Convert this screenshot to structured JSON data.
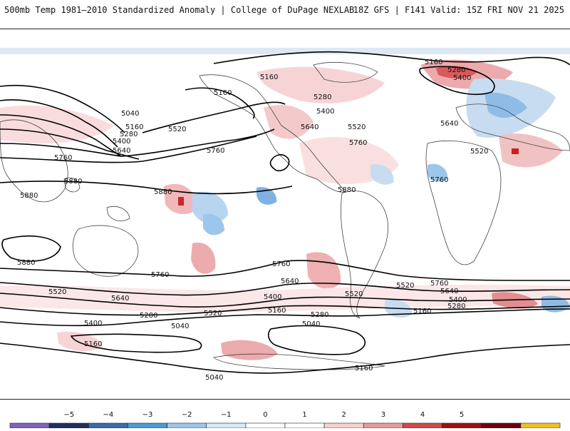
{
  "header": {
    "title_left": "500mb Temp 1981–2010 Standardized Anomaly | College of DuPage NEXLAB",
    "title_right": "18Z GFS | F141 Valid: 15Z FRI NOV 21 2025"
  },
  "contour_labels": {
    "l1": "5160",
    "l2": "5280",
    "l3": "5400",
    "l4": "5160",
    "l5": "5160",
    "l6": "5280",
    "l7": "5400",
    "l8": "5640",
    "l9": "5520",
    "l10": "5760",
    "l11": "5640",
    "l12": "5520",
    "l13": "5760",
    "l14": "5040",
    "l15": "5160",
    "l16": "5280",
    "l17": "5400",
    "l18": "5640",
    "l19": "5520",
    "l20": "5760",
    "l21": "5760",
    "l22": "5880",
    "l23": "5880",
    "l24": "5880",
    "l25": "5880",
    "l26": "5880",
    "l27": "5760",
    "l28": "5760",
    "l29": "5640",
    "l30": "5520",
    "l31": "5640",
    "l32": "5400",
    "l33": "5280",
    "l34": "5040",
    "l35": "5160",
    "l36": "5520",
    "l37": "5400",
    "l38": "5160",
    "l39": "5280",
    "l40": "5040",
    "l41": "5760",
    "l42": "5640",
    "l43": "5400",
    "l44": "5280",
    "l45": "5520",
    "l46": "5160",
    "l47": "5160",
    "l48": "5040",
    "l49": "5520"
  },
  "legend": {
    "ticks": [
      "−5",
      "−4",
      "−3",
      "−2",
      "−1",
      "0",
      "1",
      "2",
      "3",
      "4",
      "5"
    ],
    "colors": [
      "#8060c0",
      "#203060",
      "#3a6ab0",
      "#4a9ad8",
      "#9cc6ea",
      "#d8e8f6",
      "#ffffff",
      "#ffffff",
      "#f4d0d0",
      "#e89a9a",
      "#d04848",
      "#a01010",
      "#700010",
      "#f0c020"
    ]
  }
}
